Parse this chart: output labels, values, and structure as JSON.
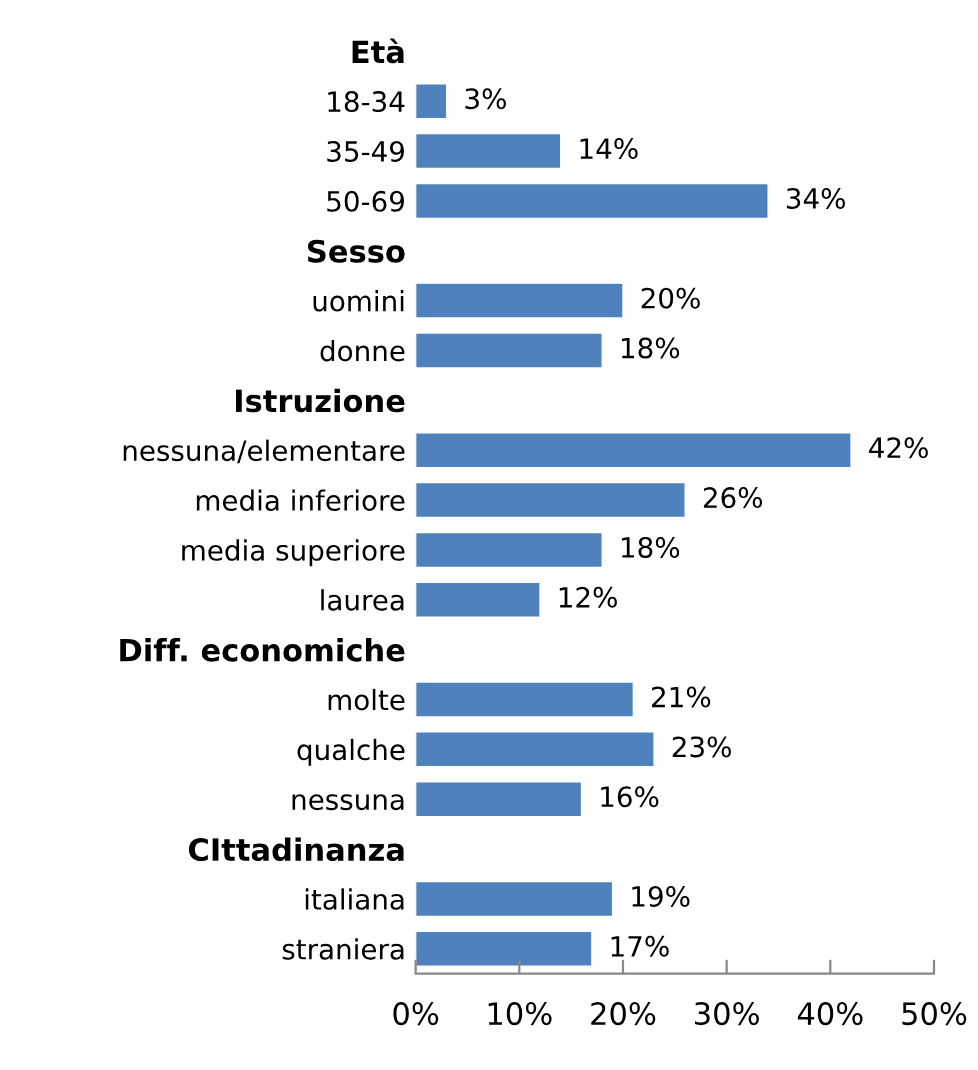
{
  "chart_data": {
    "type": "bar",
    "orientation": "horizontal",
    "categories": [
      "Età",
      "18-34",
      "35-49",
      "50-69",
      "Sesso",
      "uomini",
      "donne",
      "Istruzione",
      "nessuna/elementare",
      "media inferiore",
      "media superiore",
      "laurea",
      "Diff. economiche",
      "molte",
      "qualche",
      "nessuna",
      "CIttadinanza",
      "italiana",
      "straniera"
    ],
    "values": [
      null,
      3,
      14,
      34,
      null,
      20,
      18,
      null,
      42,
      26,
      18,
      12,
      null,
      21,
      23,
      16,
      null,
      19,
      17
    ],
    "value_labels": [
      null,
      "3%",
      "14%",
      "34%",
      null,
      "20%",
      "18%",
      null,
      "42%",
      "26%",
      "18%",
      "12%",
      null,
      "21%",
      "23%",
      "16%",
      null,
      "19%",
      "17%"
    ],
    "color": "#4f81bd",
    "xlim": [
      0,
      50
    ],
    "xticks": [
      {
        "value": 0,
        "label": "0%"
      },
      {
        "value": 10,
        "label": "10%"
      },
      {
        "value": 20,
        "label": "20%"
      },
      {
        "value": 30,
        "label": "30%"
      },
      {
        "value": 40,
        "label": "40%"
      },
      {
        "value": 50,
        "label": "50%"
      }
    ],
    "grid": false,
    "legend": false
  }
}
